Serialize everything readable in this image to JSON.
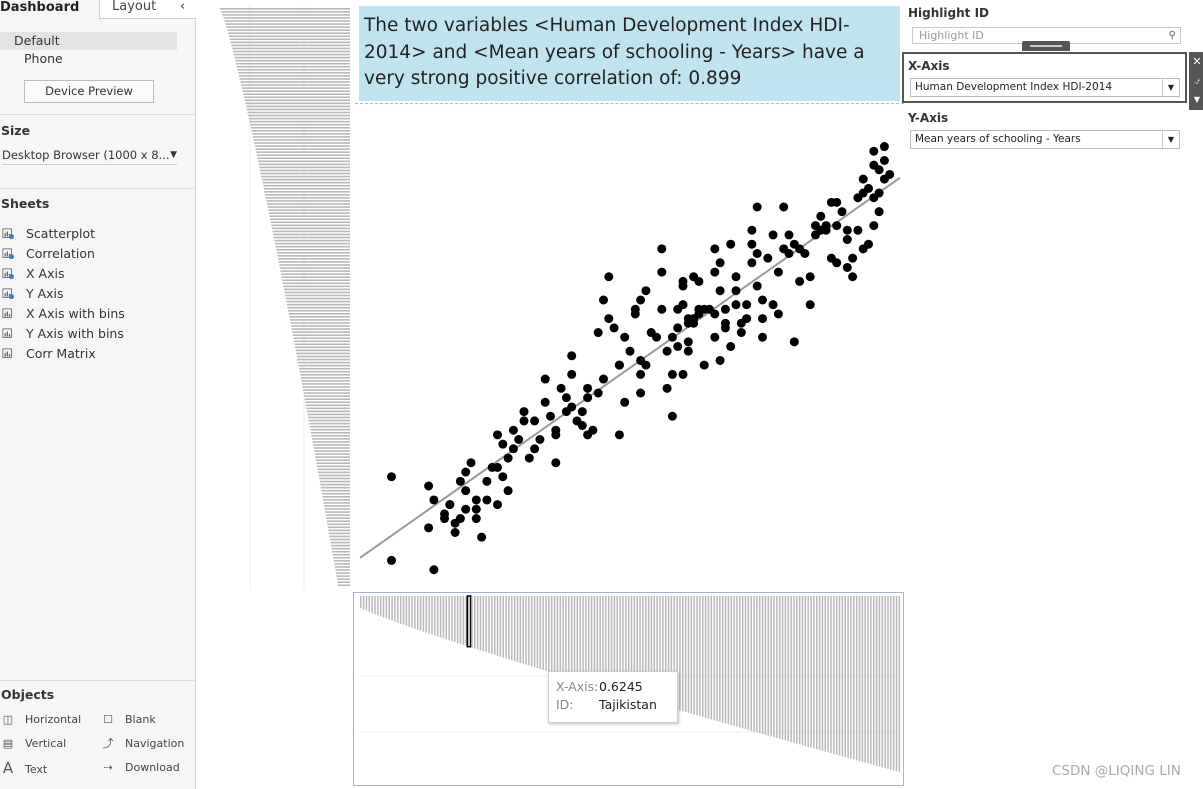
{
  "sidebar": {
    "tabs": {
      "dashboard": "Dashboard",
      "layout": "Layout"
    },
    "devices": [
      {
        "label": "Default"
      },
      {
        "label": "Phone"
      }
    ],
    "device_preview_label": "Device Preview",
    "size_title": "Size",
    "size_value": "Desktop Browser (1000 x 8...",
    "sheets_title": "Sheets",
    "sheets": [
      {
        "label": "Scatterplot",
        "used": true
      },
      {
        "label": "Correlation",
        "used": true
      },
      {
        "label": "X Axis",
        "used": true
      },
      {
        "label": "Y Axis",
        "used": true
      },
      {
        "label": "X Axis with bins",
        "used": false
      },
      {
        "label": "Y Axis with bins",
        "used": false
      },
      {
        "label": "Corr Matrix",
        "used": false
      }
    ],
    "objects_title": "Objects",
    "objects": [
      {
        "label": "Horizontal",
        "icon": "horizontal-icon"
      },
      {
        "label": "Blank",
        "icon": "blank-icon"
      },
      {
        "label": "Vertical",
        "icon": "vertical-icon"
      },
      {
        "label": "Navigation",
        "icon": "navigation-icon"
      },
      {
        "label": "Text",
        "icon": "text-icon"
      },
      {
        "label": "Download",
        "icon": "download-icon"
      }
    ]
  },
  "description": "The two variables <Human Development Index HDI-2014> and <Mean years of schooling - Years> have a very strong positive correlation of: 0.899",
  "controls": {
    "highlight_title": "Highlight ID",
    "highlight_placeholder": "Highlight ID",
    "x_axis_title": "X-Axis",
    "x_axis_value": "Human Development Index HDI-2014",
    "y_axis_title": "Y-Axis",
    "y_axis_value": "Mean years of schooling - Years"
  },
  "tooltip": {
    "x_key": "X-Axis:",
    "x_value": "0.6245",
    "id_key": "ID:",
    "id_value": "Tajikistan"
  },
  "watermark": "CSDN @LIQING LIN",
  "colors": {
    "description_bg": "#bfe4f0",
    "point": "#000000",
    "trend": "#999999",
    "bar": "#b8b8b8",
    "highlight_bar": "#000000"
  },
  "chart_data": [
    {
      "type": "scatter",
      "title": "",
      "xlabel": "",
      "ylabel": "",
      "trend_line": true,
      "xlim": [
        0,
        100
      ],
      "ylim": [
        0,
        100
      ],
      "points": [
        [
          5,
          22
        ],
        [
          5,
          4
        ],
        [
          12,
          11
        ],
        [
          13,
          2
        ],
        [
          12,
          20
        ],
        [
          13,
          17
        ],
        [
          15,
          14
        ],
        [
          15,
          13
        ],
        [
          16,
          16
        ],
        [
          16,
          16
        ],
        [
          17,
          12
        ],
        [
          18,
          13
        ],
        [
          17,
          10
        ],
        [
          18,
          21
        ],
        [
          19,
          19
        ],
        [
          19,
          15
        ],
        [
          19,
          23
        ],
        [
          20,
          25
        ],
        [
          21,
          13
        ],
        [
          21,
          15
        ],
        [
          21,
          17
        ],
        [
          22,
          9
        ],
        [
          23,
          21
        ],
        [
          23,
          17
        ],
        [
          24,
          24
        ],
        [
          25,
          24
        ],
        [
          25,
          31
        ],
        [
          25,
          16
        ],
        [
          26,
          29
        ],
        [
          26,
          22
        ],
        [
          27,
          26
        ],
        [
          27,
          19
        ],
        [
          28,
          32
        ],
        [
          28,
          28
        ],
        [
          29,
          30
        ],
        [
          30,
          36
        ],
        [
          30,
          34
        ],
        [
          31,
          26
        ],
        [
          32,
          34
        ],
        [
          32,
          28
        ],
        [
          33,
          30
        ],
        [
          34,
          43
        ],
        [
          34,
          38
        ],
        [
          35,
          35
        ],
        [
          36,
          31
        ],
        [
          36,
          25
        ],
        [
          36,
          32
        ],
        [
          37,
          41
        ],
        [
          38,
          36
        ],
        [
          38,
          39
        ],
        [
          39,
          37
        ],
        [
          39,
          48
        ],
        [
          39,
          44
        ],
        [
          40,
          34
        ],
        [
          41,
          33
        ],
        [
          41,
          36
        ],
        [
          42,
          41
        ],
        [
          42,
          39
        ],
        [
          43,
          32
        ],
        [
          42,
          31
        ],
        [
          44,
          53
        ],
        [
          44,
          40
        ],
        [
          45,
          60
        ],
        [
          45,
          43
        ],
        [
          47,
          54
        ],
        [
          46,
          56
        ],
        [
          46,
          65
        ],
        [
          48,
          31
        ],
        [
          48,
          46
        ],
        [
          48,
          46
        ],
        [
          49,
          38
        ],
        [
          49,
          52
        ],
        [
          50,
          49
        ],
        [
          51,
          58
        ],
        [
          51,
          57
        ],
        [
          52,
          40
        ],
        [
          52,
          44
        ],
        [
          52,
          60
        ],
        [
          52,
          47
        ],
        [
          53,
          46
        ],
        [
          53,
          62
        ],
        [
          54,
          53
        ],
        [
          55,
          52
        ],
        [
          56,
          58
        ],
        [
          56,
          66
        ],
        [
          56,
          71
        ],
        [
          57,
          41
        ],
        [
          57,
          49
        ],
        [
          58,
          52
        ],
        [
          58,
          44
        ],
        [
          58,
          35
        ],
        [
          59,
          50
        ],
        [
          59,
          54
        ],
        [
          59,
          58
        ],
        [
          60,
          44
        ],
        [
          60,
          59
        ],
        [
          60,
          63
        ],
        [
          60,
          64
        ],
        [
          61,
          55
        ],
        [
          61,
          51
        ],
        [
          61,
          49
        ],
        [
          61,
          56
        ],
        [
          62,
          65
        ],
        [
          62,
          56
        ],
        [
          62,
          55
        ],
        [
          63,
          58
        ],
        [
          63,
          64
        ],
        [
          63,
          57
        ],
        [
          64,
          46
        ],
        [
          64,
          58
        ],
        [
          65,
          58
        ],
        [
          66,
          66
        ],
        [
          66,
          57
        ],
        [
          66,
          71
        ],
        [
          66,
          52
        ],
        [
          67,
          68
        ],
        [
          67,
          62
        ],
        [
          67,
          47
        ],
        [
          68,
          55
        ],
        [
          68,
          54
        ],
        [
          68,
          58
        ],
        [
          69,
          50
        ],
        [
          69,
          72
        ],
        [
          70,
          59
        ],
        [
          70,
          62
        ],
        [
          70,
          65
        ],
        [
          71,
          55
        ],
        [
          71,
          53
        ],
        [
          72,
          56
        ],
        [
          72,
          59
        ],
        [
          73,
          68
        ],
        [
          73,
          72
        ],
        [
          73,
          75
        ],
        [
          74,
          63
        ],
        [
          74,
          80
        ],
        [
          74,
          70
        ],
        [
          75,
          56
        ],
        [
          75,
          52
        ],
        [
          75,
          60
        ],
        [
          76,
          69
        ],
        [
          77,
          74
        ],
        [
          77,
          59
        ],
        [
          78,
          66
        ],
        [
          78,
          57
        ],
        [
          79,
          71
        ],
        [
          79,
          80
        ],
        [
          80,
          70
        ],
        [
          80,
          74
        ],
        [
          81,
          51
        ],
        [
          81,
          72
        ],
        [
          82,
          71
        ],
        [
          82,
          64
        ],
        [
          83,
          70
        ],
        [
          84,
          65
        ],
        [
          84,
          59
        ],
        [
          85,
          74
        ],
        [
          85,
          76
        ],
        [
          86,
          75
        ],
        [
          86,
          78
        ],
        [
          87,
          76
        ],
        [
          87,
          75
        ],
        [
          88,
          81
        ],
        [
          88,
          69
        ],
        [
          89,
          81
        ],
        [
          89,
          76
        ],
        [
          89,
          68
        ],
        [
          90,
          79
        ],
        [
          91,
          67
        ],
        [
          91,
          73
        ],
        [
          91,
          75
        ],
        [
          92,
          65
        ],
        [
          92,
          69
        ],
        [
          93,
          75
        ],
        [
          93,
          82
        ],
        [
          94,
          71
        ],
        [
          94,
          83
        ],
        [
          94,
          86
        ],
        [
          95,
          84
        ],
        [
          95,
          72
        ],
        [
          96,
          76
        ],
        [
          96,
          92
        ],
        [
          96,
          82
        ],
        [
          96,
          89
        ],
        [
          97,
          79
        ],
        [
          97,
          83
        ],
        [
          97,
          88
        ],
        [
          98,
          93
        ],
        [
          98,
          86
        ],
        [
          98,
          90
        ],
        [
          99,
          87
        ]
      ]
    },
    {
      "type": "bar",
      "title": "Y Axis",
      "orientation": "horizontal",
      "count": 190
    },
    {
      "type": "bar",
      "title": "X Axis",
      "orientation": "vertical",
      "count": 190,
      "highlighted_index": 38
    }
  ]
}
